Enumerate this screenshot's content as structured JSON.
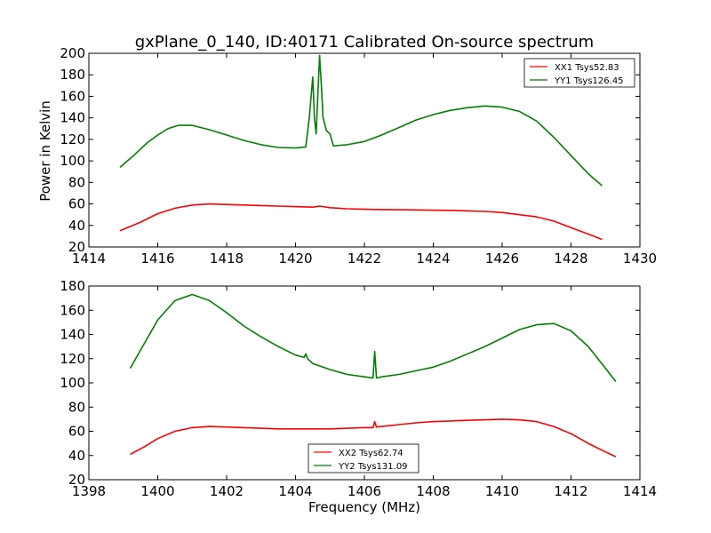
{
  "figure": {
    "title": "gxPlane_0_140, ID:40171 Calibrated On-source spectrum",
    "xlabel": "Frequency (MHz)",
    "ylabel": "Power in Kelvin"
  },
  "colors": {
    "red": "#ff0000",
    "green": "#008000"
  },
  "chart_data": [
    {
      "type": "line",
      "title": "gxPlane_0_140, ID:40171 Calibrated On-source spectrum",
      "xlabel": "",
      "ylabel": "Power in Kelvin",
      "xlim": [
        1414,
        1430
      ],
      "ylim": [
        20,
        200
      ],
      "xticks": [
        1414,
        1416,
        1418,
        1420,
        1422,
        1424,
        1426,
        1428,
        1430
      ],
      "yticks": [
        20,
        40,
        60,
        80,
        100,
        120,
        140,
        160,
        180,
        200
      ],
      "legend_position": "top-right",
      "series": [
        {
          "name": "XX1 Tsys52.83",
          "color": "#ff0000",
          "x": [
            1414.9,
            1415.5,
            1416.0,
            1416.5,
            1417.0,
            1417.5,
            1418.0,
            1418.5,
            1419.0,
            1419.5,
            1420.0,
            1420.5,
            1420.7,
            1421.0,
            1421.5,
            1422.0,
            1422.5,
            1423.0,
            1423.5,
            1424.0,
            1424.5,
            1425.0,
            1425.5,
            1426.0,
            1426.5,
            1427.0,
            1427.5,
            1428.0,
            1428.5,
            1428.9
          ],
          "y": [
            35,
            43,
            51,
            56,
            59,
            60,
            59.5,
            59,
            58.5,
            58,
            57.5,
            57,
            58,
            56.5,
            55.5,
            55,
            54.8,
            54.6,
            54.4,
            54.2,
            54,
            53.5,
            53,
            52,
            50,
            48,
            44,
            38,
            32,
            27
          ]
        },
        {
          "name": "YY1 Tsys126.45",
          "color": "#008000",
          "x": [
            1414.9,
            1415.3,
            1415.7,
            1416.0,
            1416.3,
            1416.6,
            1417.0,
            1417.5,
            1418.0,
            1418.5,
            1419.0,
            1419.5,
            1420.0,
            1420.3,
            1420.4,
            1420.5,
            1420.55,
            1420.6,
            1420.7,
            1420.75,
            1420.8,
            1420.9,
            1421.0,
            1421.1,
            1421.5,
            1422.0,
            1422.5,
            1423.0,
            1423.5,
            1424.0,
            1424.5,
            1425.0,
            1425.5,
            1426.0,
            1426.5,
            1427.0,
            1427.5,
            1428.0,
            1428.5,
            1428.9
          ],
          "y": [
            94,
            105,
            117,
            124,
            130,
            133,
            133,
            129,
            124,
            119,
            115,
            112.5,
            112,
            113,
            140,
            178,
            140,
            125,
            198,
            170,
            140,
            128,
            125,
            114,
            115,
            118,
            124,
            131,
            138,
            143,
            147,
            149.5,
            151,
            150,
            146,
            137,
            122,
            105,
            88,
            77
          ]
        }
      ]
    },
    {
      "type": "line",
      "title": "",
      "xlabel": "Frequency (MHz)",
      "ylabel": "",
      "xlim": [
        1398,
        1414
      ],
      "ylim": [
        20,
        180
      ],
      "xticks": [
        1398,
        1400,
        1402,
        1404,
        1406,
        1408,
        1410,
        1412,
        1414
      ],
      "yticks": [
        20,
        40,
        60,
        80,
        100,
        120,
        140,
        160,
        180
      ],
      "legend_position": "bottom-center",
      "series": [
        {
          "name": "XX2 Tsys62.74",
          "color": "#ff0000",
          "x": [
            1399.2,
            1399.6,
            1400.0,
            1400.5,
            1401.0,
            1401.5,
            1402.0,
            1402.5,
            1403.0,
            1403.5,
            1404.0,
            1404.5,
            1405.0,
            1405.5,
            1406.0,
            1406.25,
            1406.3,
            1406.35,
            1406.5,
            1407.0,
            1407.5,
            1408.0,
            1408.5,
            1409.0,
            1409.5,
            1410.0,
            1410.5,
            1411.0,
            1411.5,
            1412.0,
            1412.5,
            1413.0,
            1413.3
          ],
          "y": [
            41,
            47,
            54,
            60,
            63,
            64,
            63.5,
            63,
            62.5,
            62,
            62,
            62,
            62,
            62.5,
            63,
            63,
            68,
            63.5,
            64,
            65.5,
            67,
            68,
            68.5,
            69,
            69.5,
            70,
            69.5,
            68,
            64,
            58,
            50,
            43,
            39
          ]
        },
        {
          "name": "YY2 Tsys131.09",
          "color": "#008000",
          "x": [
            1399.2,
            1399.6,
            1400.0,
            1400.5,
            1401.0,
            1401.5,
            1402.0,
            1402.5,
            1403.0,
            1403.5,
            1404.0,
            1404.25,
            1404.3,
            1404.35,
            1404.5,
            1405.0,
            1405.5,
            1406.0,
            1406.25,
            1406.3,
            1406.35,
            1406.5,
            1407.0,
            1407.5,
            1408.0,
            1408.5,
            1409.0,
            1409.5,
            1410.0,
            1410.5,
            1411.0,
            1411.5,
            1412.0,
            1412.5,
            1413.0,
            1413.3
          ],
          "y": [
            112,
            132,
            152,
            168,
            173,
            168,
            158,
            147,
            138,
            130,
            123,
            121,
            124,
            120,
            116,
            111,
            107,
            105,
            104,
            126,
            104,
            105,
            107,
            110,
            113,
            118,
            124,
            130,
            137,
            144,
            148,
            149,
            143,
            130,
            112,
            101
          ]
        }
      ]
    }
  ]
}
